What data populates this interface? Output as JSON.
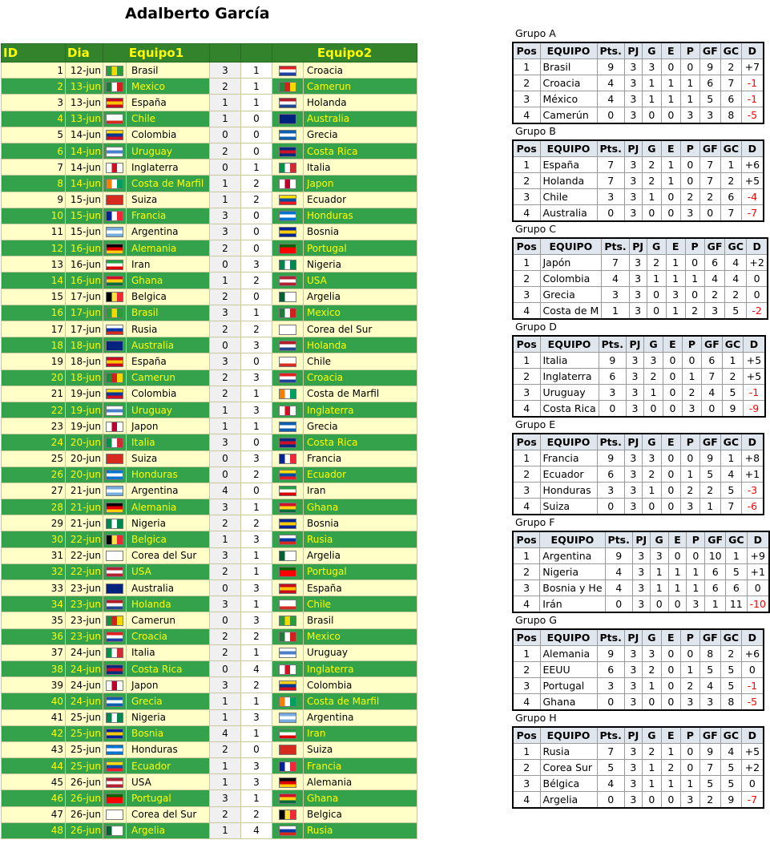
{
  "title": "Adalberto García",
  "matches_header": {
    "id": "ID",
    "dia": "Dia",
    "equipo1": "Equipo1",
    "equipo2": "Equipo2"
  },
  "flag_colors": {
    "brasil": [
      "#2a9a3a",
      "#f5d800",
      "#2a9a3a"
    ],
    "croacia": [
      "#e02020",
      "#ffffff",
      "#1c3fa0"
    ],
    "mexico": [
      "#1f7a3a",
      "#ffffff",
      "#d02020"
    ],
    "camerun": [
      "#1f8a3a",
      "#d02020",
      "#f5d800"
    ],
    "espana": [
      "#c60b1e",
      "#ffc400",
      "#c60b1e"
    ],
    "holanda": [
      "#ae1c28",
      "#ffffff",
      "#21468b"
    ],
    "chile": [
      "#ffffff",
      "#ffffff",
      "#d52b1e"
    ],
    "australia": [
      "#00247d",
      "#00247d",
      "#00247d"
    ],
    "colombia": [
      "#fcd116",
      "#003893",
      "#ce1126"
    ],
    "grecia": [
      "#0d5eaf",
      "#ffffff",
      "#0d5eaf"
    ],
    "uruguay": [
      "#ffffff",
      "#4a7fc9",
      "#ffffff"
    ],
    "costa-rica": [
      "#002b7f",
      "#ce1126",
      "#002b7f"
    ],
    "inglaterra": [
      "#ffffff",
      "#ce1124",
      "#ffffff"
    ],
    "italia": [
      "#009246",
      "#ffffff",
      "#ce2b37"
    ],
    "costa-de-marfil": [
      "#f77f00",
      "#ffffff",
      "#009e60"
    ],
    "japon": [
      "#ffffff",
      "#bc002d",
      "#ffffff"
    ],
    "suiza": [
      "#d52b1e",
      "#d52b1e",
      "#d52b1e"
    ],
    "ecuador": [
      "#ffdd00",
      "#034ea2",
      "#ed1c24"
    ],
    "francia": [
      "#002395",
      "#ffffff",
      "#ed2939"
    ],
    "honduras": [
      "#0073cf",
      "#ffffff",
      "#0073cf"
    ],
    "argentina": [
      "#74acdf",
      "#ffffff",
      "#74acdf"
    ],
    "bosnia": [
      "#002395",
      "#fecb00",
      "#002395"
    ],
    "alemania": [
      "#000000",
      "#dd0000",
      "#ffce00"
    ],
    "portugal": [
      "#006600",
      "#ff0000",
      "#ff0000"
    ],
    "iran": [
      "#239f40",
      "#ffffff",
      "#da0000"
    ],
    "nigeria": [
      "#008751",
      "#ffffff",
      "#008751"
    ],
    "ghana": [
      "#ce1126",
      "#fcd116",
      "#006b3f"
    ],
    "usa": [
      "#b22234",
      "#ffffff",
      "#b22234"
    ],
    "belgica": [
      "#000000",
      "#fae042",
      "#ed2939"
    ],
    "argelia": [
      "#006233",
      "#ffffff",
      "#ffffff"
    ],
    "rusia": [
      "#ffffff",
      "#0039a6",
      "#d52b1e"
    ],
    "corea-del-sur": [
      "#ffffff",
      "#ffffff",
      "#ffffff"
    ]
  },
  "matches": [
    {
      "id": "1",
      "dia": "12-jun",
      "team1": "Brasil",
      "flag1": "brasil",
      "g1": "3",
      "g2": "1",
      "team2": "Croacia",
      "flag2": "croacia"
    },
    {
      "id": "2",
      "dia": "13-jun",
      "team1": "Mexico",
      "flag1": "mexico",
      "g1": "2",
      "g2": "1",
      "team2": "Camerun",
      "flag2": "camerun"
    },
    {
      "id": "3",
      "dia": "13-jun",
      "team1": "España",
      "flag1": "espana",
      "g1": "1",
      "g2": "1",
      "team2": "Holanda",
      "flag2": "holanda"
    },
    {
      "id": "4",
      "dia": "13-jun",
      "team1": "Chile",
      "flag1": "chile",
      "g1": "1",
      "g2": "0",
      "team2": "Australia",
      "flag2": "australia"
    },
    {
      "id": "5",
      "dia": "14-jun",
      "team1": "Colombia",
      "flag1": "colombia",
      "g1": "0",
      "g2": "0",
      "team2": "Grecia",
      "flag2": "grecia"
    },
    {
      "id": "6",
      "dia": "14-jun",
      "team1": "Uruguay",
      "flag1": "uruguay",
      "g1": "2",
      "g2": "0",
      "team2": "Costa Rica",
      "flag2": "costa-rica"
    },
    {
      "id": "7",
      "dia": "14-jun",
      "team1": "Inglaterra",
      "flag1": "inglaterra",
      "g1": "0",
      "g2": "1",
      "team2": "Italia",
      "flag2": "italia"
    },
    {
      "id": "8",
      "dia": "14-jun",
      "team1": "Costa de Marfil",
      "flag1": "costa-de-marfil",
      "g1": "1",
      "g2": "2",
      "team2": "Japon",
      "flag2": "japon"
    },
    {
      "id": "9",
      "dia": "15-jun",
      "team1": "Suiza",
      "flag1": "suiza",
      "g1": "1",
      "g2": "2",
      "team2": "Ecuador",
      "flag2": "ecuador"
    },
    {
      "id": "10",
      "dia": "15-jun",
      "team1": "Francia",
      "flag1": "francia",
      "g1": "3",
      "g2": "0",
      "team2": "Honduras",
      "flag2": "honduras"
    },
    {
      "id": "11",
      "dia": "15-jun",
      "team1": "Argentina",
      "flag1": "argentina",
      "g1": "3",
      "g2": "0",
      "team2": "Bosnia",
      "flag2": "bosnia"
    },
    {
      "id": "12",
      "dia": "16-jun",
      "team1": "Alemania",
      "flag1": "alemania",
      "g1": "2",
      "g2": "0",
      "team2": "Portugal",
      "flag2": "portugal"
    },
    {
      "id": "13",
      "dia": "16-jun",
      "team1": "Iran",
      "flag1": "iran",
      "g1": "0",
      "g2": "3",
      "team2": "Nigeria",
      "flag2": "nigeria"
    },
    {
      "id": "14",
      "dia": "16-jun",
      "team1": "Ghana",
      "flag1": "ghana",
      "g1": "1",
      "g2": "2",
      "team2": "USA",
      "flag2": "usa"
    },
    {
      "id": "15",
      "dia": "17-jun",
      "team1": "Belgica",
      "flag1": "belgica",
      "g1": "2",
      "g2": "0",
      "team2": "Argelia",
      "flag2": "argelia"
    },
    {
      "id": "16",
      "dia": "17-jun",
      "team1": "Brasil",
      "flag1": "brasil",
      "g1": "3",
      "g2": "1",
      "team2": "Mexico",
      "flag2": "mexico"
    },
    {
      "id": "17",
      "dia": "17-jun",
      "team1": "Rusia",
      "flag1": "rusia",
      "g1": "2",
      "g2": "2",
      "team2": "Corea del Sur",
      "flag2": "corea-del-sur"
    },
    {
      "id": "18",
      "dia": "18-jun",
      "team1": "Australia",
      "flag1": "australia",
      "g1": "0",
      "g2": "3",
      "team2": "Holanda",
      "flag2": "holanda"
    },
    {
      "id": "19",
      "dia": "18-jun",
      "team1": "España",
      "flag1": "espana",
      "g1": "3",
      "g2": "0",
      "team2": "Chile",
      "flag2": "chile"
    },
    {
      "id": "20",
      "dia": "18-jun",
      "team1": "Camerun",
      "flag1": "camerun",
      "g1": "2",
      "g2": "3",
      "team2": "Croacia",
      "flag2": "croacia"
    },
    {
      "id": "21",
      "dia": "19-jun",
      "team1": "Colombia",
      "flag1": "colombia",
      "g1": "2",
      "g2": "1",
      "team2": "Costa de Marfil",
      "flag2": "costa-de-marfil"
    },
    {
      "id": "22",
      "dia": "19-jun",
      "team1": "Uruguay",
      "flag1": "uruguay",
      "g1": "1",
      "g2": "3",
      "team2": "Inglaterra",
      "flag2": "inglaterra"
    },
    {
      "id": "23",
      "dia": "19-jun",
      "team1": "Japon",
      "flag1": "japon",
      "g1": "1",
      "g2": "1",
      "team2": "Grecia",
      "flag2": "grecia"
    },
    {
      "id": "24",
      "dia": "20-jun",
      "team1": "Italia",
      "flag1": "italia",
      "g1": "3",
      "g2": "0",
      "team2": "Costa Rica",
      "flag2": "costa-rica"
    },
    {
      "id": "25",
      "dia": "20-jun",
      "team1": "Suiza",
      "flag1": "suiza",
      "g1": "0",
      "g2": "3",
      "team2": "Francia",
      "flag2": "francia"
    },
    {
      "id": "26",
      "dia": "20-jun",
      "team1": "Honduras",
      "flag1": "honduras",
      "g1": "0",
      "g2": "2",
      "team2": "Ecuador",
      "flag2": "ecuador"
    },
    {
      "id": "27",
      "dia": "21-jun",
      "team1": "Argentina",
      "flag1": "argentina",
      "g1": "4",
      "g2": "0",
      "team2": "Iran",
      "flag2": "iran"
    },
    {
      "id": "28",
      "dia": "21-jun",
      "team1": "Alemania",
      "flag1": "alemania",
      "g1": "3",
      "g2": "1",
      "team2": "Ghana",
      "flag2": "ghana"
    },
    {
      "id": "29",
      "dia": "21-jun",
      "team1": "Nigeria",
      "flag1": "nigeria",
      "g1": "2",
      "g2": "2",
      "team2": "Bosnia",
      "flag2": "bosnia"
    },
    {
      "id": "30",
      "dia": "22-jun",
      "team1": "Belgica",
      "flag1": "belgica",
      "g1": "1",
      "g2": "3",
      "team2": "Rusia",
      "flag2": "rusia"
    },
    {
      "id": "31",
      "dia": "22-jun",
      "team1": "Corea del Sur",
      "flag1": "corea-del-sur",
      "g1": "3",
      "g2": "1",
      "team2": "Argelia",
      "flag2": "argelia"
    },
    {
      "id": "32",
      "dia": "22-jun",
      "team1": "USA",
      "flag1": "usa",
      "g1": "2",
      "g2": "1",
      "team2": "Portugal",
      "flag2": "portugal"
    },
    {
      "id": "33",
      "dia": "23-jun",
      "team1": "Australia",
      "flag1": "australia",
      "g1": "0",
      "g2": "3",
      "team2": "España",
      "flag2": "espana"
    },
    {
      "id": "34",
      "dia": "23-jun",
      "team1": "Holanda",
      "flag1": "holanda",
      "g1": "3",
      "g2": "1",
      "team2": "Chile",
      "flag2": "chile"
    },
    {
      "id": "35",
      "dia": "23-jun",
      "team1": "Camerun",
      "flag1": "camerun",
      "g1": "0",
      "g2": "3",
      "team2": "Brasil",
      "flag2": "brasil"
    },
    {
      "id": "36",
      "dia": "23-jun",
      "team1": "Croacia",
      "flag1": "croacia",
      "g1": "2",
      "g2": "2",
      "team2": "Mexico",
      "flag2": "mexico"
    },
    {
      "id": "37",
      "dia": "24-jun",
      "team1": "Italia",
      "flag1": "italia",
      "g1": "2",
      "g2": "1",
      "team2": "Uruguay",
      "flag2": "uruguay"
    },
    {
      "id": "38",
      "dia": "24-jun",
      "team1": "Costa Rica",
      "flag1": "costa-rica",
      "g1": "0",
      "g2": "4",
      "team2": "Inglaterra",
      "flag2": "inglaterra"
    },
    {
      "id": "39",
      "dia": "24-jun",
      "team1": "Japon",
      "flag1": "japon",
      "g1": "3",
      "g2": "2",
      "team2": "Colombia",
      "flag2": "colombia"
    },
    {
      "id": "40",
      "dia": "24-jun",
      "team1": "Grecia",
      "flag1": "grecia",
      "g1": "1",
      "g2": "1",
      "team2": "Costa de Marfil",
      "flag2": "costa-de-marfil"
    },
    {
      "id": "41",
      "dia": "25-jun",
      "team1": "Nigeria",
      "flag1": "nigeria",
      "g1": "1",
      "g2": "3",
      "team2": "Argentina",
      "flag2": "argentina"
    },
    {
      "id": "42",
      "dia": "25-jun",
      "team1": "Bosnia",
      "flag1": "bosnia",
      "g1": "4",
      "g2": "1",
      "team2": "Iran",
      "flag2": "iran"
    },
    {
      "id": "43",
      "dia": "25-jun",
      "team1": "Honduras",
      "flag1": "honduras",
      "g1": "2",
      "g2": "0",
      "team2": "Suiza",
      "flag2": "suiza"
    },
    {
      "id": "44",
      "dia": "25-jun",
      "team1": "Ecuador",
      "flag1": "ecuador",
      "g1": "1",
      "g2": "3",
      "team2": "Francia",
      "flag2": "francia"
    },
    {
      "id": "45",
      "dia": "26-jun",
      "team1": "USA",
      "flag1": "usa",
      "g1": "1",
      "g2": "3",
      "team2": "Alemania",
      "flag2": "alemania"
    },
    {
      "id": "46",
      "dia": "26-jun",
      "team1": "Portugal",
      "flag1": "portugal",
      "g1": "3",
      "g2": "1",
      "team2": "Ghana",
      "flag2": "ghana"
    },
    {
      "id": "47",
      "dia": "26-jun",
      "team1": "Corea del Sur",
      "flag1": "corea-del-sur",
      "g1": "2",
      "g2": "2",
      "team2": "Belgica",
      "flag2": "belgica"
    },
    {
      "id": "48",
      "dia": "26-jun",
      "team1": "Argelia",
      "flag1": "argelia",
      "g1": "1",
      "g2": "4",
      "team2": "Rusia",
      "flag2": "rusia"
    }
  ],
  "group_header": [
    "Pos",
    "EQUIPO",
    "Pts.",
    "PJ",
    "G",
    "E",
    "P",
    "GF",
    "GC",
    "D"
  ],
  "groups": [
    {
      "name": "Grupo A",
      "rows": [
        [
          "1",
          "Brasil",
          "9",
          "3",
          "3",
          "0",
          "0",
          "9",
          "2",
          "+7"
        ],
        [
          "2",
          "Croacia",
          "4",
          "3",
          "1",
          "1",
          "1",
          "6",
          "7",
          "-1"
        ],
        [
          "3",
          "México",
          "4",
          "3",
          "1",
          "1",
          "1",
          "5",
          "6",
          "-1"
        ],
        [
          "4",
          "Camerún",
          "0",
          "3",
          "0",
          "0",
          "3",
          "3",
          "8",
          "-5"
        ]
      ]
    },
    {
      "name": "Grupo B",
      "rows": [
        [
          "1",
          "España",
          "7",
          "3",
          "2",
          "1",
          "0",
          "7",
          "1",
          "+6"
        ],
        [
          "2",
          "Holanda",
          "7",
          "3",
          "2",
          "1",
          "0",
          "7",
          "2",
          "+5"
        ],
        [
          "3",
          "Chile",
          "3",
          "3",
          "1",
          "0",
          "2",
          "2",
          "6",
          "-4"
        ],
        [
          "4",
          "Australia",
          "0",
          "3",
          "0",
          "0",
          "3",
          "0",
          "7",
          "-7"
        ]
      ]
    },
    {
      "name": "Grupo C",
      "rows": [
        [
          "1",
          "Japón",
          "7",
          "3",
          "2",
          "1",
          "0",
          "6",
          "4",
          "+2"
        ],
        [
          "2",
          "Colombia",
          "4",
          "3",
          "1",
          "1",
          "1",
          "4",
          "4",
          "0"
        ],
        [
          "3",
          "Grecia",
          "3",
          "3",
          "0",
          "3",
          "0",
          "2",
          "2",
          "0"
        ],
        [
          "4",
          "Costa de M",
          "1",
          "3",
          "0",
          "1",
          "2",
          "3",
          "5",
          "-2"
        ]
      ]
    },
    {
      "name": "Grupo D",
      "rows": [
        [
          "1",
          "Italia",
          "9",
          "3",
          "3",
          "0",
          "0",
          "6",
          "1",
          "+5"
        ],
        [
          "2",
          "Inglaterra",
          "6",
          "3",
          "2",
          "0",
          "1",
          "7",
          "2",
          "+5"
        ],
        [
          "3",
          "Uruguay",
          "3",
          "3",
          "1",
          "0",
          "2",
          "4",
          "5",
          "-1"
        ],
        [
          "4",
          "Costa Rica",
          "0",
          "3",
          "0",
          "0",
          "3",
          "0",
          "9",
          "-9"
        ]
      ]
    },
    {
      "name": "Grupo E",
      "rows": [
        [
          "1",
          "Francia",
          "9",
          "3",
          "3",
          "0",
          "0",
          "9",
          "1",
          "+8"
        ],
        [
          "2",
          "Ecuador",
          "6",
          "3",
          "2",
          "0",
          "1",
          "5",
          "4",
          "+1"
        ],
        [
          "3",
          "Honduras",
          "3",
          "3",
          "1",
          "0",
          "2",
          "2",
          "5",
          "-3"
        ],
        [
          "4",
          "Suiza",
          "0",
          "3",
          "0",
          "0",
          "3",
          "1",
          "7",
          "-6"
        ]
      ]
    },
    {
      "name": "Grupo F",
      "rows": [
        [
          "1",
          "Argentina",
          "9",
          "3",
          "3",
          "0",
          "0",
          "10",
          "1",
          "+9"
        ],
        [
          "2",
          "Nigeria",
          "4",
          "3",
          "1",
          "1",
          "1",
          "6",
          "5",
          "+1"
        ],
        [
          "3",
          "Bosnia y He",
          "4",
          "3",
          "1",
          "1",
          "1",
          "6",
          "6",
          "0"
        ],
        [
          "4",
          "Irán",
          "0",
          "3",
          "0",
          "0",
          "3",
          "1",
          "11",
          "-10"
        ]
      ]
    },
    {
      "name": "Grupo G",
      "rows": [
        [
          "1",
          "Alemania",
          "9",
          "3",
          "3",
          "0",
          "0",
          "8",
          "2",
          "+6"
        ],
        [
          "2",
          "EEUU",
          "6",
          "3",
          "2",
          "0",
          "1",
          "5",
          "5",
          "0"
        ],
        [
          "3",
          "Portugal",
          "3",
          "3",
          "1",
          "0",
          "2",
          "4",
          "5",
          "-1"
        ],
        [
          "4",
          "Ghana",
          "0",
          "3",
          "0",
          "0",
          "3",
          "3",
          "8",
          "-5"
        ]
      ]
    },
    {
      "name": "Grupo H",
      "rows": [
        [
          "1",
          "Rusia",
          "7",
          "3",
          "2",
          "1",
          "0",
          "9",
          "4",
          "+5"
        ],
        [
          "2",
          "Corea Sur",
          "5",
          "3",
          "1",
          "2",
          "0",
          "7",
          "5",
          "+2"
        ],
        [
          "3",
          "Bélgica",
          "4",
          "3",
          "1",
          "1",
          "1",
          "5",
          "5",
          "0"
        ],
        [
          "4",
          "Argelia",
          "0",
          "3",
          "0",
          "0",
          "3",
          "2",
          "9",
          "-7"
        ]
      ]
    }
  ]
}
